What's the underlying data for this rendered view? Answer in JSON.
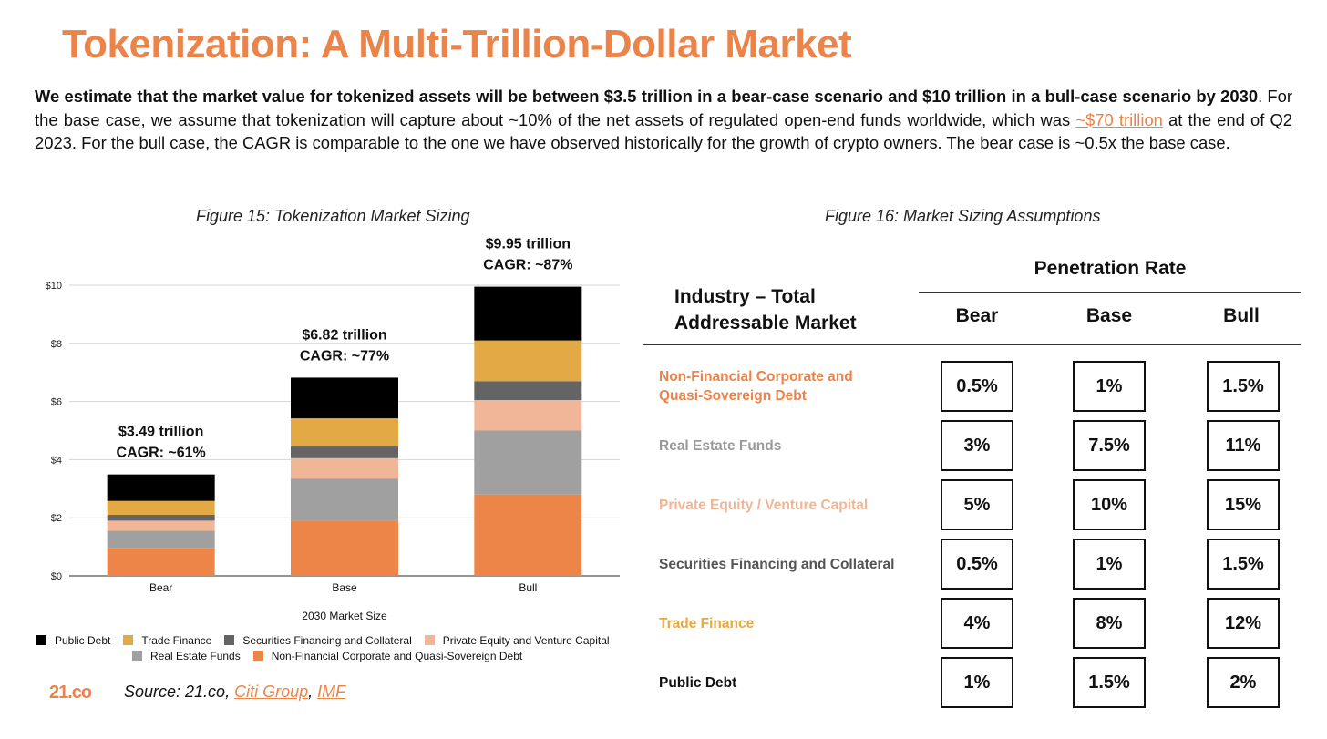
{
  "title": "Tokenization: A Multi-Trillion-Dollar Market",
  "intro": {
    "bold": "We estimate that the market value for tokenized assets will be between $3.5 trillion in a bear-case scenario and $10 trillion in a bull-case scenario by 2030",
    "text1": ". For the base case, we assume that tokenization will capture about ~10% of the net assets of regulated open-end funds worldwide, which was ",
    "link": "~$70 trillion",
    "text2": " at the end of Q2 2023. For the bull case, the CAGR is comparable to the one we have observed historically for the growth of crypto owners. The bear case is ~0.5x the base case."
  },
  "figure15": {
    "caption": "Figure 15: Tokenization Market Sizing"
  },
  "figure16": {
    "caption": "Figure 16: Market Sizing Assumptions"
  },
  "chart_data": {
    "type": "bar",
    "stacked": true,
    "xlabel": "2030 Market Size",
    "ylabel": "",
    "ylim": [
      0,
      10
    ],
    "yticks": [
      "$0",
      "$2",
      "$4",
      "$6",
      "$8",
      "$10"
    ],
    "grid": true,
    "categories": [
      "Bear",
      "Base",
      "Bull"
    ],
    "series": [
      {
        "name": "Non-Financial Corporate and Quasi-Sovereign Debt",
        "color": "#ed8549",
        "values": [
          0.95,
          1.9,
          2.8
        ]
      },
      {
        "name": "Real Estate Funds",
        "color": "#a0a0a0",
        "values": [
          0.6,
          1.45,
          2.2
        ]
      },
      {
        "name": "Private Equity and Venture Capital",
        "color": "#f1b697",
        "values": [
          0.35,
          0.7,
          1.05
        ]
      },
      {
        "name": "Securities Financing and Collateral",
        "color": "#646464",
        "values": [
          0.2,
          0.4,
          0.65
        ]
      },
      {
        "name": "Trade Finance",
        "color": "#e3a944",
        "values": [
          0.48,
          0.97,
          1.4
        ]
      },
      {
        "name": "Public Debt",
        "color": "#000000",
        "values": [
          0.91,
          1.4,
          1.85
        ]
      }
    ],
    "annotations": [
      {
        "category": "Bear",
        "line1": "$3.49 trillion",
        "line2": "CAGR: ~61%"
      },
      {
        "category": "Base",
        "line1": "$6.82  trillion",
        "line2": "CAGR: ~77%"
      },
      {
        "category": "Bull",
        "line1": "$9.95  trillion",
        "line2": "CAGR: ~87%"
      }
    ],
    "legend": {
      "placement": "bottom",
      "row1": [
        "Public Debt",
        "Trade Finance",
        "Securities Financing and Collateral",
        "Private Equity and Venture Capital"
      ],
      "row2": [
        "Real Estate Funds",
        "Non-Financial Corporate and Quasi-Sovereign Debt"
      ]
    }
  },
  "table": {
    "penetration_header": "Penetration Rate",
    "industry_header_line1": "Industry – Total",
    "industry_header_line2": "Addressable Market",
    "columns": [
      "Bear",
      "Base",
      "Bull"
    ],
    "rows": [
      {
        "label": "Non-Financial Corporate and Quasi-Sovereign Debt",
        "color": "#ec8449",
        "values": [
          "0.5%",
          "1%",
          "1.5%"
        ]
      },
      {
        "label": "Real Estate Funds",
        "color": "#9a9a9a",
        "values": [
          "3%",
          "7.5%",
          "11%"
        ]
      },
      {
        "label": "Private Equity / Venture Capital",
        "color": "#f0b594",
        "values": [
          "5%",
          "10%",
          "15%"
        ]
      },
      {
        "label": "Securities Financing and Collateral",
        "color": "#555555",
        "values": [
          "0.5%",
          "1%",
          "1.5%"
        ]
      },
      {
        "label": "Trade Finance",
        "color": "#e3a944",
        "values": [
          "4%",
          "8%",
          "12%"
        ]
      },
      {
        "label": "Public Debt",
        "color": "#111111",
        "values": [
          "1%",
          "1.5%",
          "2%"
        ]
      }
    ]
  },
  "footer": {
    "logo": "21.co",
    "source_prefix": "Source: 21.co, ",
    "source_link1": "Citi Group",
    "source_sep": ", ",
    "source_link2": "IMF"
  }
}
